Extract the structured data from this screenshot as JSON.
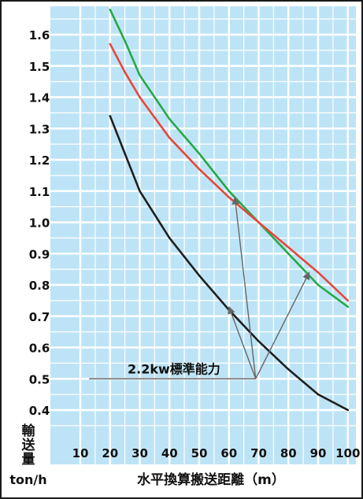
{
  "chart_data": {
    "type": "line",
    "title": "",
    "xlabel": "水平換算搬送距離（m）",
    "ylabel_chars": [
      "輸",
      "送",
      "量"
    ],
    "ylabel_unit": "ton/h",
    "xlim": [
      0,
      100
    ],
    "ylim": [
      0.35,
      1.7
    ],
    "x_ticks": [
      10,
      20,
      30,
      40,
      50,
      60,
      70,
      80,
      90,
      100
    ],
    "y_ticks": [
      0.4,
      0.5,
      0.6,
      0.7,
      0.8,
      0.9,
      1.0,
      1.1,
      1.2,
      1.3,
      1.4,
      1.5,
      1.6
    ],
    "grid": true,
    "colors": {
      "background": "#bde4f6",
      "grid": "#ffffff",
      "frame": "#1a1a1a",
      "green": "#27a845",
      "red": "#e8463a",
      "black": "#1f1f1f",
      "arrow": "#666666"
    },
    "series": [
      {
        "color_key": "green",
        "x": [
          20,
          25,
          30,
          40,
          50,
          60,
          70,
          75,
          80,
          90,
          100
        ],
        "y": [
          1.68,
          1.58,
          1.47,
          1.33,
          1.22,
          1.1,
          1.0,
          0.95,
          0.9,
          0.8,
          0.73
        ]
      },
      {
        "color_key": "red",
        "x": [
          20,
          25,
          30,
          40,
          50,
          60,
          70,
          75,
          80,
          90,
          100
        ],
        "y": [
          1.57,
          1.48,
          1.4,
          1.27,
          1.17,
          1.08,
          1.0,
          0.96,
          0.92,
          0.84,
          0.75
        ]
      },
      {
        "color_key": "black",
        "x": [
          20,
          25,
          30,
          40,
          50,
          60,
          70,
          80,
          90,
          100
        ],
        "y": [
          1.34,
          1.22,
          1.1,
          0.95,
          0.83,
          0.72,
          0.62,
          0.53,
          0.45,
          0.4
        ]
      }
    ],
    "annotation": {
      "text": "2.2kw標準能力",
      "origin": [
        69,
        0.5
      ],
      "line_start_x": 5,
      "arrow_targets": [
        [
          62,
          1.08
        ],
        [
          60,
          0.73
        ],
        [
          87,
          0.84
        ]
      ]
    }
  }
}
